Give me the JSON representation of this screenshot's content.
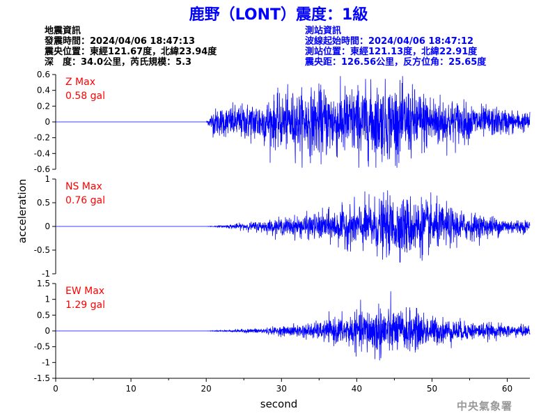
{
  "title": "鹿野（LONT）震度：1級",
  "earthquake_info": {
    "header": "地震資訊",
    "origin_time": "發震時間：2024/04/06 18:47:13",
    "epicenter": "震央位置：東經121.67度，北緯23.94度",
    "depth_magnitude": "深　度：34.0公里，芮氏規模：5.3"
  },
  "station_info": {
    "header": "測站資訊",
    "wave_start": "波線起始時間：2024/04/06 18:47:12",
    "station_location": "測站位置：東經121.13度，北緯22.91度",
    "distance_azimuth": "震央距：126.56公里，反方位角：25.65度"
  },
  "footer": "中央氣象署",
  "colors": {
    "trace": "#0000ff",
    "label": "#ff0000",
    "title": "#0000ff",
    "axis": "#000000"
  },
  "chart_data": {
    "type": "line",
    "xlabel": "second",
    "ylabel": "acceleration",
    "xlim": [
      0,
      63
    ],
    "xticks": [
      0,
      10,
      20,
      30,
      40,
      50,
      60
    ],
    "shared_x": true,
    "grid": false,
    "panels": [
      {
        "name": "Z",
        "label_line1": "Z Max",
        "label_line2": "0.58 gal",
        "peak_gal": 0.58,
        "ylim": [
          -0.6,
          0.6
        ],
        "yticks": [
          -0.6,
          -0.4,
          -0.2,
          0,
          0.2,
          0.4,
          0.6
        ],
        "onset_s": 20,
        "envelope": {
          "x": [
            0,
            20,
            21,
            25,
            30,
            35,
            40,
            45,
            50,
            55,
            60,
            63
          ],
          "y": [
            0,
            0,
            0.15,
            0.2,
            0.3,
            0.38,
            0.4,
            0.42,
            0.32,
            0.2,
            0.14,
            0.1
          ]
        }
      },
      {
        "name": "NS",
        "label_line1": "NS Max",
        "label_line2": "0.76 gal",
        "peak_gal": 0.76,
        "ylim": [
          -1,
          1
        ],
        "yticks": [
          -1,
          -0.5,
          0,
          0.5,
          1
        ],
        "onset_s": 20,
        "envelope": {
          "x": [
            0,
            20,
            22,
            26,
            30,
            35,
            40,
            42,
            45,
            48,
            50,
            55,
            60,
            63
          ],
          "y": [
            0,
            0,
            0.02,
            0.08,
            0.15,
            0.25,
            0.4,
            0.5,
            0.55,
            0.55,
            0.45,
            0.25,
            0.15,
            0.12
          ]
        }
      },
      {
        "name": "EW",
        "label_line1": "EW Max",
        "label_line2": "1.29 gal",
        "peak_gal": 1.29,
        "ylim": [
          -1.5,
          1.5
        ],
        "yticks": [
          -1.5,
          -1,
          -0.5,
          0,
          0.5,
          1,
          1.5
        ],
        "onset_s": 20,
        "envelope": {
          "x": [
            0,
            20,
            22,
            26,
            30,
            35,
            40,
            43,
            45,
            48,
            50,
            55,
            60,
            63
          ],
          "y": [
            0,
            0,
            0.02,
            0.06,
            0.12,
            0.25,
            0.5,
            0.75,
            0.6,
            0.55,
            0.4,
            0.25,
            0.18,
            0.15
          ]
        }
      }
    ]
  }
}
